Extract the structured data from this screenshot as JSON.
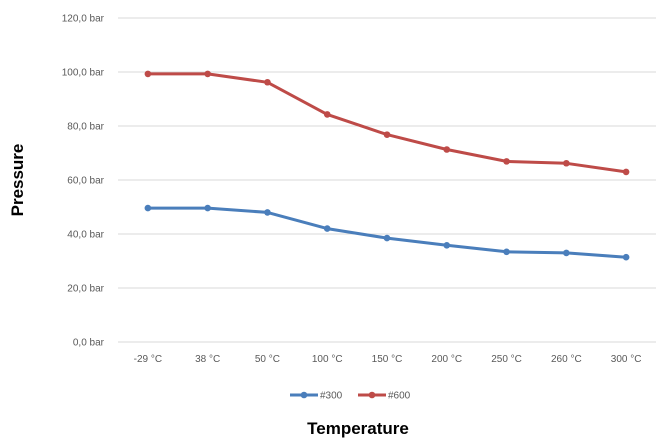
{
  "chart_data": {
    "type": "line",
    "title": "",
    "xlabel": "Temperature",
    "ylabel": "Pressure",
    "categories": [
      "-29 °C",
      "38 °C",
      "50 °C",
      "100 °C",
      "150 °C",
      "200 °C",
      "250 °C",
      "260 °C",
      "300 °C"
    ],
    "y_ticks": [
      "0,0 bar",
      "20,0 bar",
      "40,0 bar",
      "60,0 bar",
      "80,0 bar",
      "100,0 bar",
      "120,0 bar"
    ],
    "ylim": [
      0,
      120
    ],
    "grid": true,
    "legend_position": "bottom",
    "series": [
      {
        "name": "#300",
        "color": "#4a7ebb",
        "values": [
          49.6,
          49.6,
          48.0,
          42.0,
          38.5,
          35.8,
          33.4,
          33.0,
          31.4
        ]
      },
      {
        "name": "#600",
        "color": "#be4b48",
        "values": [
          99.3,
          99.3,
          96.2,
          84.3,
          76.8,
          71.3,
          66.9,
          66.2,
          63.0
        ]
      }
    ]
  }
}
